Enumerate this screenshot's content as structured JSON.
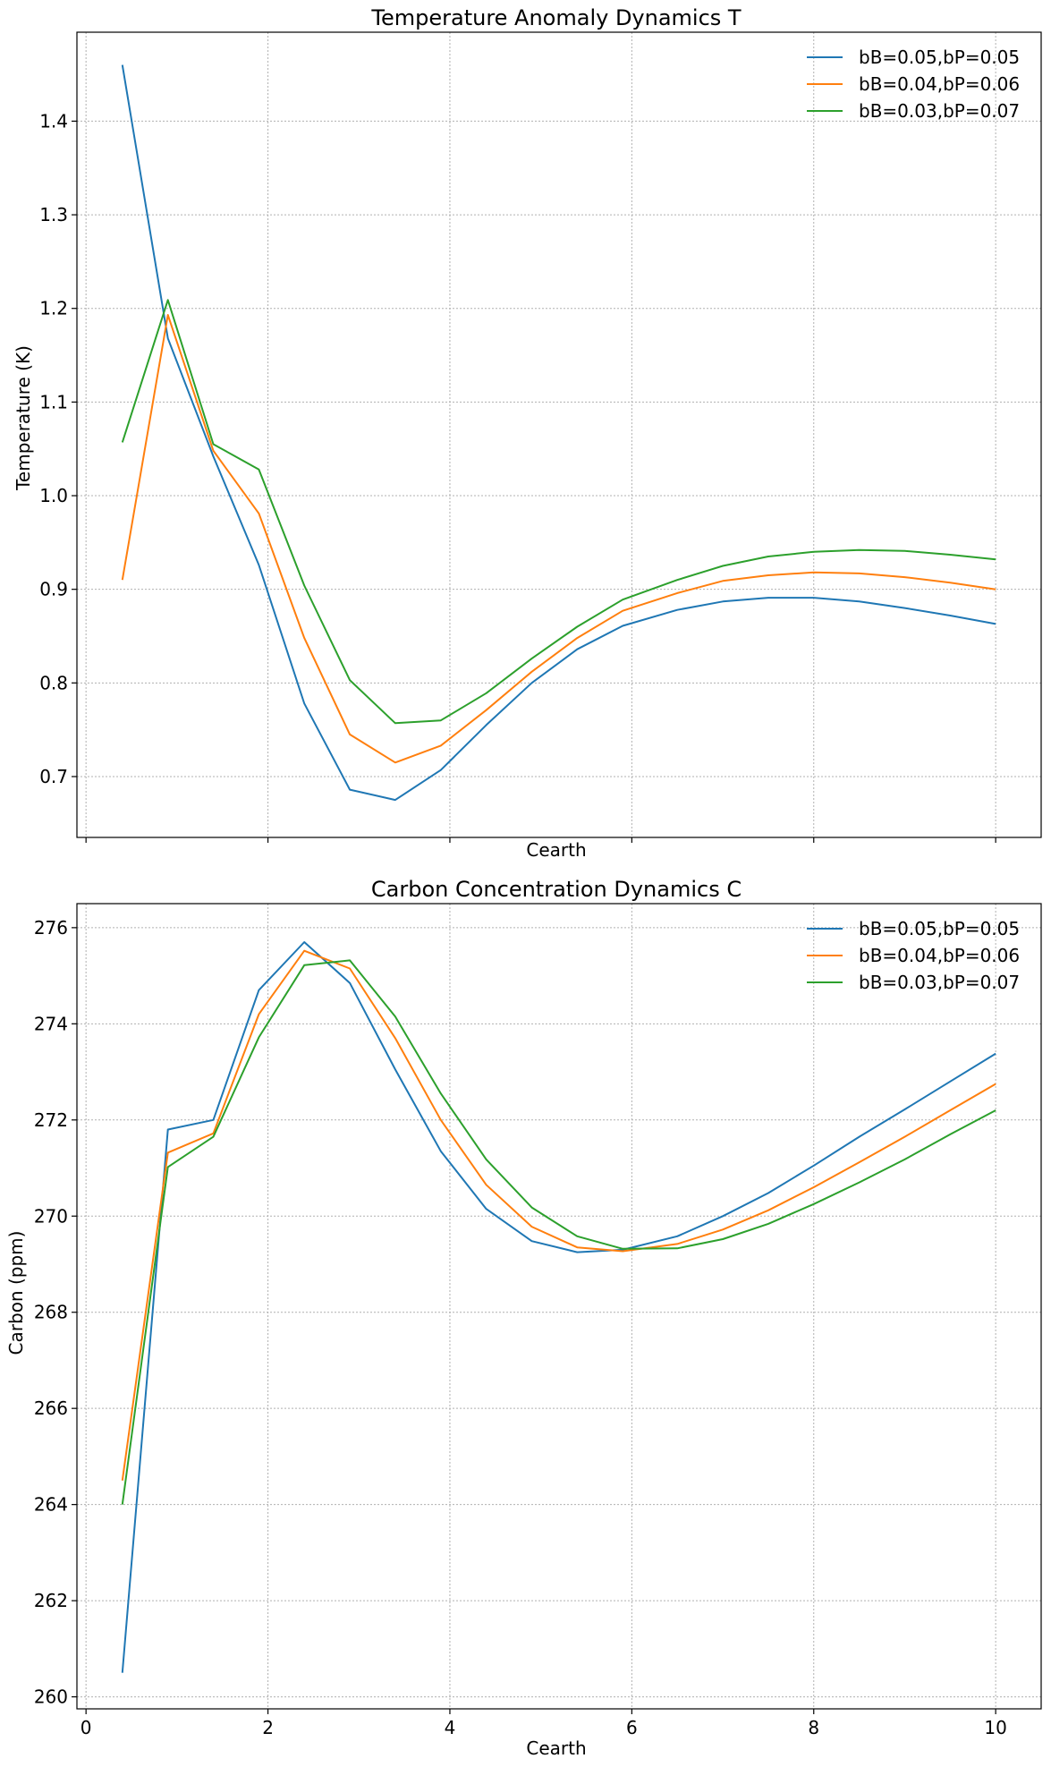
{
  "chart_data": [
    {
      "type": "line",
      "title": "Temperature Anomaly Dynamics T",
      "xlabel": "Cearth",
      "ylabel": "Temperature (K)",
      "xlim": [
        -0.1,
        10.5
      ],
      "ylim": [
        0.635,
        1.495
      ],
      "x_ticks": [
        0,
        2,
        4,
        6,
        8,
        10
      ],
      "x_tick_labels_visible": false,
      "y_ticks": [
        0.7,
        0.8,
        0.9,
        1.0,
        1.1,
        1.2,
        1.3,
        1.4
      ],
      "y_tick_labels": [
        "0.7",
        "0.8",
        "0.9",
        "1.0",
        "1.1",
        "1.2",
        "1.3",
        "1.4"
      ],
      "grid": true,
      "legend_position": "top-right",
      "x": [
        0.4,
        0.9,
        1.4,
        1.9,
        2.4,
        2.9,
        3.4,
        3.9,
        4.4,
        4.9,
        5.4,
        5.9,
        6.5,
        7.0,
        7.5,
        8.0,
        8.5,
        9.0,
        9.5,
        10.0
      ],
      "series": [
        {
          "name": "bB=0.05,bP=0.05",
          "color": "#1f77b4",
          "values": [
            1.46,
            1.168,
            1.042,
            0.926,
            0.778,
            0.686,
            0.675,
            0.707,
            0.755,
            0.8,
            0.836,
            0.861,
            0.878,
            0.887,
            0.891,
            0.891,
            0.887,
            0.88,
            0.872,
            0.863
          ]
        },
        {
          "name": "bB=0.04,bP=0.06",
          "color": "#ff7f0e",
          "values": [
            0.91,
            1.193,
            1.048,
            0.981,
            0.848,
            0.745,
            0.715,
            0.733,
            0.771,
            0.812,
            0.848,
            0.877,
            0.896,
            0.909,
            0.915,
            0.918,
            0.917,
            0.913,
            0.907,
            0.9
          ]
        },
        {
          "name": "bB=0.03,bP=0.07",
          "color": "#2ca02c",
          "values": [
            1.057,
            1.209,
            1.055,
            1.028,
            0.904,
            0.803,
            0.757,
            0.76,
            0.789,
            0.826,
            0.86,
            0.889,
            0.91,
            0.925,
            0.935,
            0.94,
            0.942,
            0.941,
            0.937,
            0.932
          ]
        }
      ]
    },
    {
      "type": "line",
      "title": "Carbon Concentration Dynamics C",
      "xlabel": "Cearth",
      "ylabel": "Carbon (ppm)",
      "xlim": [
        -0.1,
        10.5
      ],
      "ylim": [
        259.75,
        276.5
      ],
      "x_ticks": [
        0,
        2,
        4,
        6,
        8,
        10
      ],
      "x_tick_labels": [
        "0",
        "2",
        "4",
        "6",
        "8",
        "10"
      ],
      "y_ticks": [
        260,
        262,
        264,
        266,
        268,
        270,
        272,
        274,
        276
      ],
      "y_tick_labels": [
        "260",
        "262",
        "264",
        "266",
        "268",
        "270",
        "272",
        "274",
        "276"
      ],
      "grid": true,
      "legend_position": "top-right",
      "x": [
        0.4,
        0.9,
        1.4,
        1.9,
        2.4,
        2.9,
        3.4,
        3.9,
        4.4,
        4.9,
        5.4,
        5.9,
        6.5,
        7.0,
        7.5,
        8.0,
        8.5,
        9.0,
        9.5,
        10.0
      ],
      "series": [
        {
          "name": "bB=0.05,bP=0.05",
          "color": "#1f77b4",
          "values": [
            260.5,
            271.8,
            272.0,
            274.7,
            275.7,
            274.85,
            273.05,
            271.35,
            270.15,
            269.48,
            269.25,
            269.3,
            269.58,
            270.0,
            270.48,
            271.05,
            271.65,
            272.22,
            272.8,
            273.38
          ]
        },
        {
          "name": "bB=0.04,bP=0.06",
          "color": "#ff7f0e",
          "values": [
            264.5,
            271.32,
            271.72,
            274.2,
            275.52,
            275.15,
            273.7,
            272.0,
            270.65,
            269.78,
            269.35,
            269.27,
            269.42,
            269.72,
            270.12,
            270.6,
            271.12,
            271.65,
            272.2,
            272.75
          ]
        },
        {
          "name": "bB=0.03,bP=0.07",
          "color": "#2ca02c",
          "values": [
            264.0,
            271.02,
            271.65,
            273.72,
            275.22,
            275.32,
            274.15,
            272.55,
            271.18,
            270.18,
            269.58,
            269.32,
            269.33,
            269.52,
            269.84,
            270.25,
            270.7,
            271.18,
            271.7,
            272.2
          ]
        }
      ]
    }
  ]
}
